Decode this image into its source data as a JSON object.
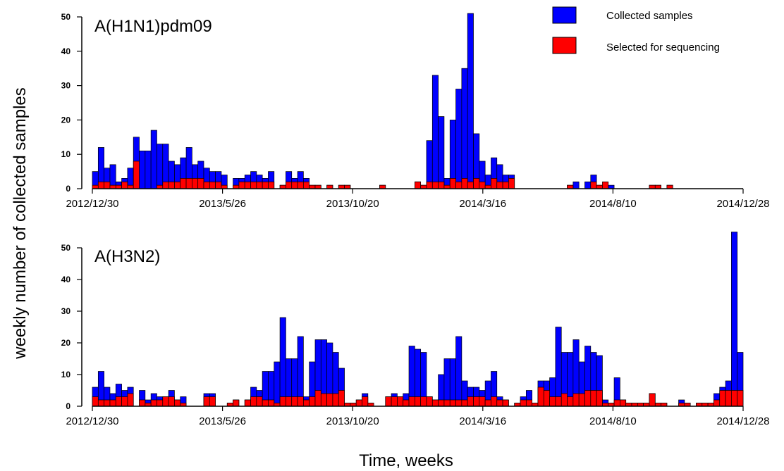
{
  "chart_data": [
    {
      "type": "bar",
      "title": "A(H1N1)pdm09",
      "ylim": [
        0,
        50
      ],
      "yticks": [
        0,
        10,
        20,
        30,
        40,
        50
      ],
      "xticks": [
        "2012/12/30",
        "2013/5/26",
        "2013/10/20",
        "2014/3/16",
        "2014/8/10",
        "2014/12/28"
      ],
      "x_start": "2012/12/30",
      "week_step_days": 7,
      "series": [
        {
          "name": "Collected samples",
          "color": "#0000ff",
          "values": [
            5,
            12,
            6,
            7,
            2,
            3,
            6,
            15,
            11,
            11,
            17,
            13,
            13,
            8,
            7,
            9,
            12,
            7,
            8,
            6,
            5,
            5,
            4,
            0,
            3,
            3,
            4,
            5,
            4,
            3,
            5,
            0,
            1,
            5,
            3,
            5,
            3,
            1,
            1,
            0,
            1,
            0,
            1,
            1,
            0,
            0,
            0,
            0,
            0,
            1,
            0,
            0,
            0,
            0,
            0,
            2,
            1,
            14,
            33,
            21,
            3,
            20,
            29,
            35,
            51,
            16,
            8,
            4,
            9,
            7,
            4,
            4,
            0,
            0,
            0,
            0,
            0,
            0,
            0,
            0,
            0,
            1,
            2,
            0,
            2,
            4,
            1,
            1,
            1,
            0,
            0,
            0,
            0,
            0,
            0,
            1,
            1,
            0,
            1,
            0,
            0,
            0,
            0,
            0,
            0,
            0,
            0,
            0,
            0,
            0,
            0
          ]
        },
        {
          "name": "Selected for sequencing",
          "color": "#ff0000",
          "values": [
            1,
            2,
            2,
            1,
            1,
            2,
            1,
            8,
            0,
            0,
            0,
            1,
            2,
            2,
            2,
            3,
            3,
            3,
            3,
            2,
            2,
            2,
            1,
            0,
            1,
            2,
            2,
            2,
            2,
            2,
            2,
            0,
            1,
            2,
            2,
            2,
            2,
            1,
            1,
            0,
            1,
            0,
            1,
            1,
            0,
            0,
            0,
            0,
            0,
            1,
            0,
            0,
            0,
            0,
            0,
            2,
            1,
            2,
            2,
            2,
            1,
            3,
            2,
            3,
            2,
            3,
            2,
            1,
            3,
            2,
            2,
            3,
            0,
            0,
            0,
            0,
            0,
            0,
            0,
            0,
            0,
            1,
            0,
            0,
            0,
            2,
            1,
            2,
            0,
            0,
            0,
            0,
            0,
            0,
            0,
            1,
            1,
            0,
            1,
            0,
            0,
            0,
            0,
            0,
            0,
            0,
            0,
            0,
            0,
            0,
            0
          ]
        }
      ]
    },
    {
      "type": "bar",
      "title": "A(H3N2)",
      "ylim": [
        0,
        50
      ],
      "yticks": [
        0,
        10,
        20,
        30,
        40,
        50
      ],
      "xticks": [
        "2012/12/30",
        "2013/5/26",
        "2013/10/20",
        "2014/3/16",
        "2014/8/10",
        "2014/12/28"
      ],
      "x_start": "2012/12/30",
      "week_step_days": 7,
      "series": [
        {
          "name": "Collected samples",
          "color": "#0000ff",
          "values": [
            6,
            11,
            6,
            4,
            7,
            5,
            6,
            0,
            5,
            2,
            4,
            3,
            3,
            5,
            2,
            3,
            0,
            0,
            0,
            4,
            4,
            0,
            0,
            1,
            2,
            0,
            2,
            6,
            5,
            11,
            11,
            14,
            28,
            15,
            15,
            22,
            3,
            14,
            21,
            21,
            20,
            17,
            12,
            1,
            1,
            2,
            4,
            1,
            0,
            0,
            3,
            4,
            3,
            4,
            19,
            18,
            17,
            3,
            2,
            10,
            15,
            15,
            22,
            8,
            6,
            6,
            5,
            8,
            11,
            3,
            2,
            0,
            1,
            3,
            5,
            1,
            8,
            8,
            9,
            25,
            17,
            17,
            21,
            14,
            19,
            17,
            16,
            2,
            1,
            9,
            2,
            1,
            1,
            1,
            1,
            4,
            1,
            1,
            0,
            0,
            2,
            1,
            0,
            1,
            1,
            1,
            4,
            6,
            8,
            55,
            17
          ]
        },
        {
          "name": "Selected for sequencing",
          "color": "#ff0000",
          "values": [
            3,
            2,
            2,
            2,
            3,
            3,
            4,
            0,
            2,
            1,
            2,
            2,
            3,
            3,
            2,
            1,
            0,
            0,
            0,
            3,
            3,
            0,
            0,
            1,
            2,
            0,
            2,
            3,
            3,
            2,
            2,
            1,
            3,
            3,
            3,
            3,
            2,
            3,
            5,
            4,
            4,
            4,
            5,
            1,
            1,
            2,
            3,
            1,
            0,
            0,
            3,
            3,
            3,
            2,
            3,
            3,
            3,
            3,
            2,
            2,
            2,
            2,
            2,
            2,
            3,
            3,
            3,
            2,
            3,
            2,
            2,
            0,
            1,
            2,
            2,
            1,
            6,
            5,
            3,
            3,
            4,
            3,
            4,
            4,
            5,
            5,
            5,
            1,
            1,
            2,
            2,
            1,
            1,
            1,
            1,
            4,
            1,
            1,
            0,
            0,
            1,
            1,
            0,
            1,
            1,
            1,
            2,
            5,
            5,
            5,
            5
          ]
        }
      ]
    }
  ],
  "legend": {
    "items": [
      {
        "label": "Collected samples",
        "color": "#0000ff"
      },
      {
        "label": "Selected for sequencing",
        "color": "#ff0000"
      }
    ],
    "placement": "top-right"
  },
  "xlabel": "Time, weeks",
  "ylabel": "weekly number of collected samples"
}
